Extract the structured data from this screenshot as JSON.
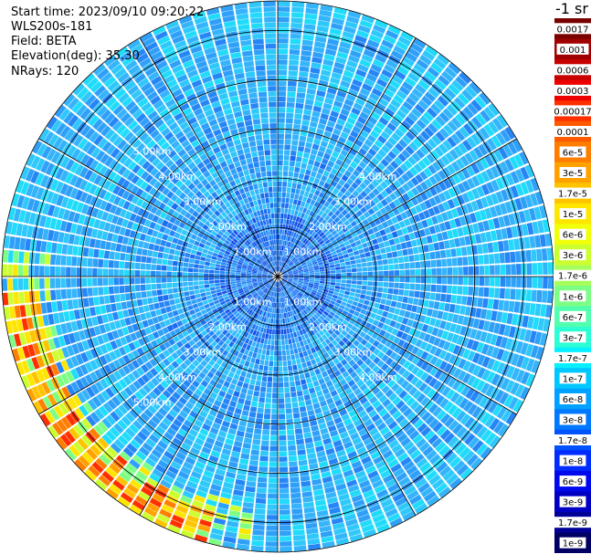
{
  "header": {
    "start_time": "Start time: 2023/09/10 09:20:22",
    "device": "WLS200s-181",
    "field": "Field: BETA",
    "elevation": "Elevation(deg): 35.30",
    "nrays": "NRays: 120"
  },
  "chart_data": {
    "type": "heatmap",
    "projection": "polar",
    "title": "",
    "colorbar_title": "-1 sr",
    "range_rings_km": [
      1.0,
      2.0,
      3.0,
      4.0,
      5.0
    ],
    "range_ring_labels": [
      "1.00km",
      "2.00km",
      "3.00km",
      "4.00km",
      "5.00km"
    ],
    "azimuth_spokes_deg": [
      0,
      30,
      60,
      90,
      120,
      150,
      180,
      210,
      240,
      270,
      300,
      330
    ],
    "max_range_km": 5.6,
    "n_rays": 120,
    "colorbar": {
      "labels": [
        "0.0017",
        "0.001",
        "0.0006",
        "0.0003",
        "0.00017",
        "0.0001",
        "6e-5",
        "3e-5",
        "1.7e-5",
        "1e-5",
        "6e-6",
        "3e-6",
        "1.7e-6",
        "1e-6",
        "6e-7",
        "3e-7",
        "1.7e-7",
        "1e-7",
        "6e-8",
        "3e-8",
        "1.7e-8",
        "1e-8",
        "6e-9",
        "3e-9",
        "1.7e-9",
        "1e-9"
      ],
      "colors": [
        "#7a0000",
        "#a00000",
        "#c80000",
        "#ee0000",
        "#ff3000",
        "#ff5a00",
        "#ff7e00",
        "#ffa200",
        "#ffc400",
        "#ffe600",
        "#f2ff0a",
        "#ccff30",
        "#a6ff5a",
        "#7cff84",
        "#52ffae",
        "#2cffd4",
        "#08f0ff",
        "#00c8ff",
        "#00a2ff",
        "#0078ff",
        "#0052ff",
        "#002cff",
        "#0008ee",
        "#0000c2",
        "#000096",
        "#000064"
      ]
    },
    "background_level": "1e-8",
    "features": [
      {
        "description_value": "3e-5",
        "range_km": [
          4.9,
          5.6
        ],
        "azimuth_deg": [
          195,
          265
        ]
      }
    ]
  }
}
